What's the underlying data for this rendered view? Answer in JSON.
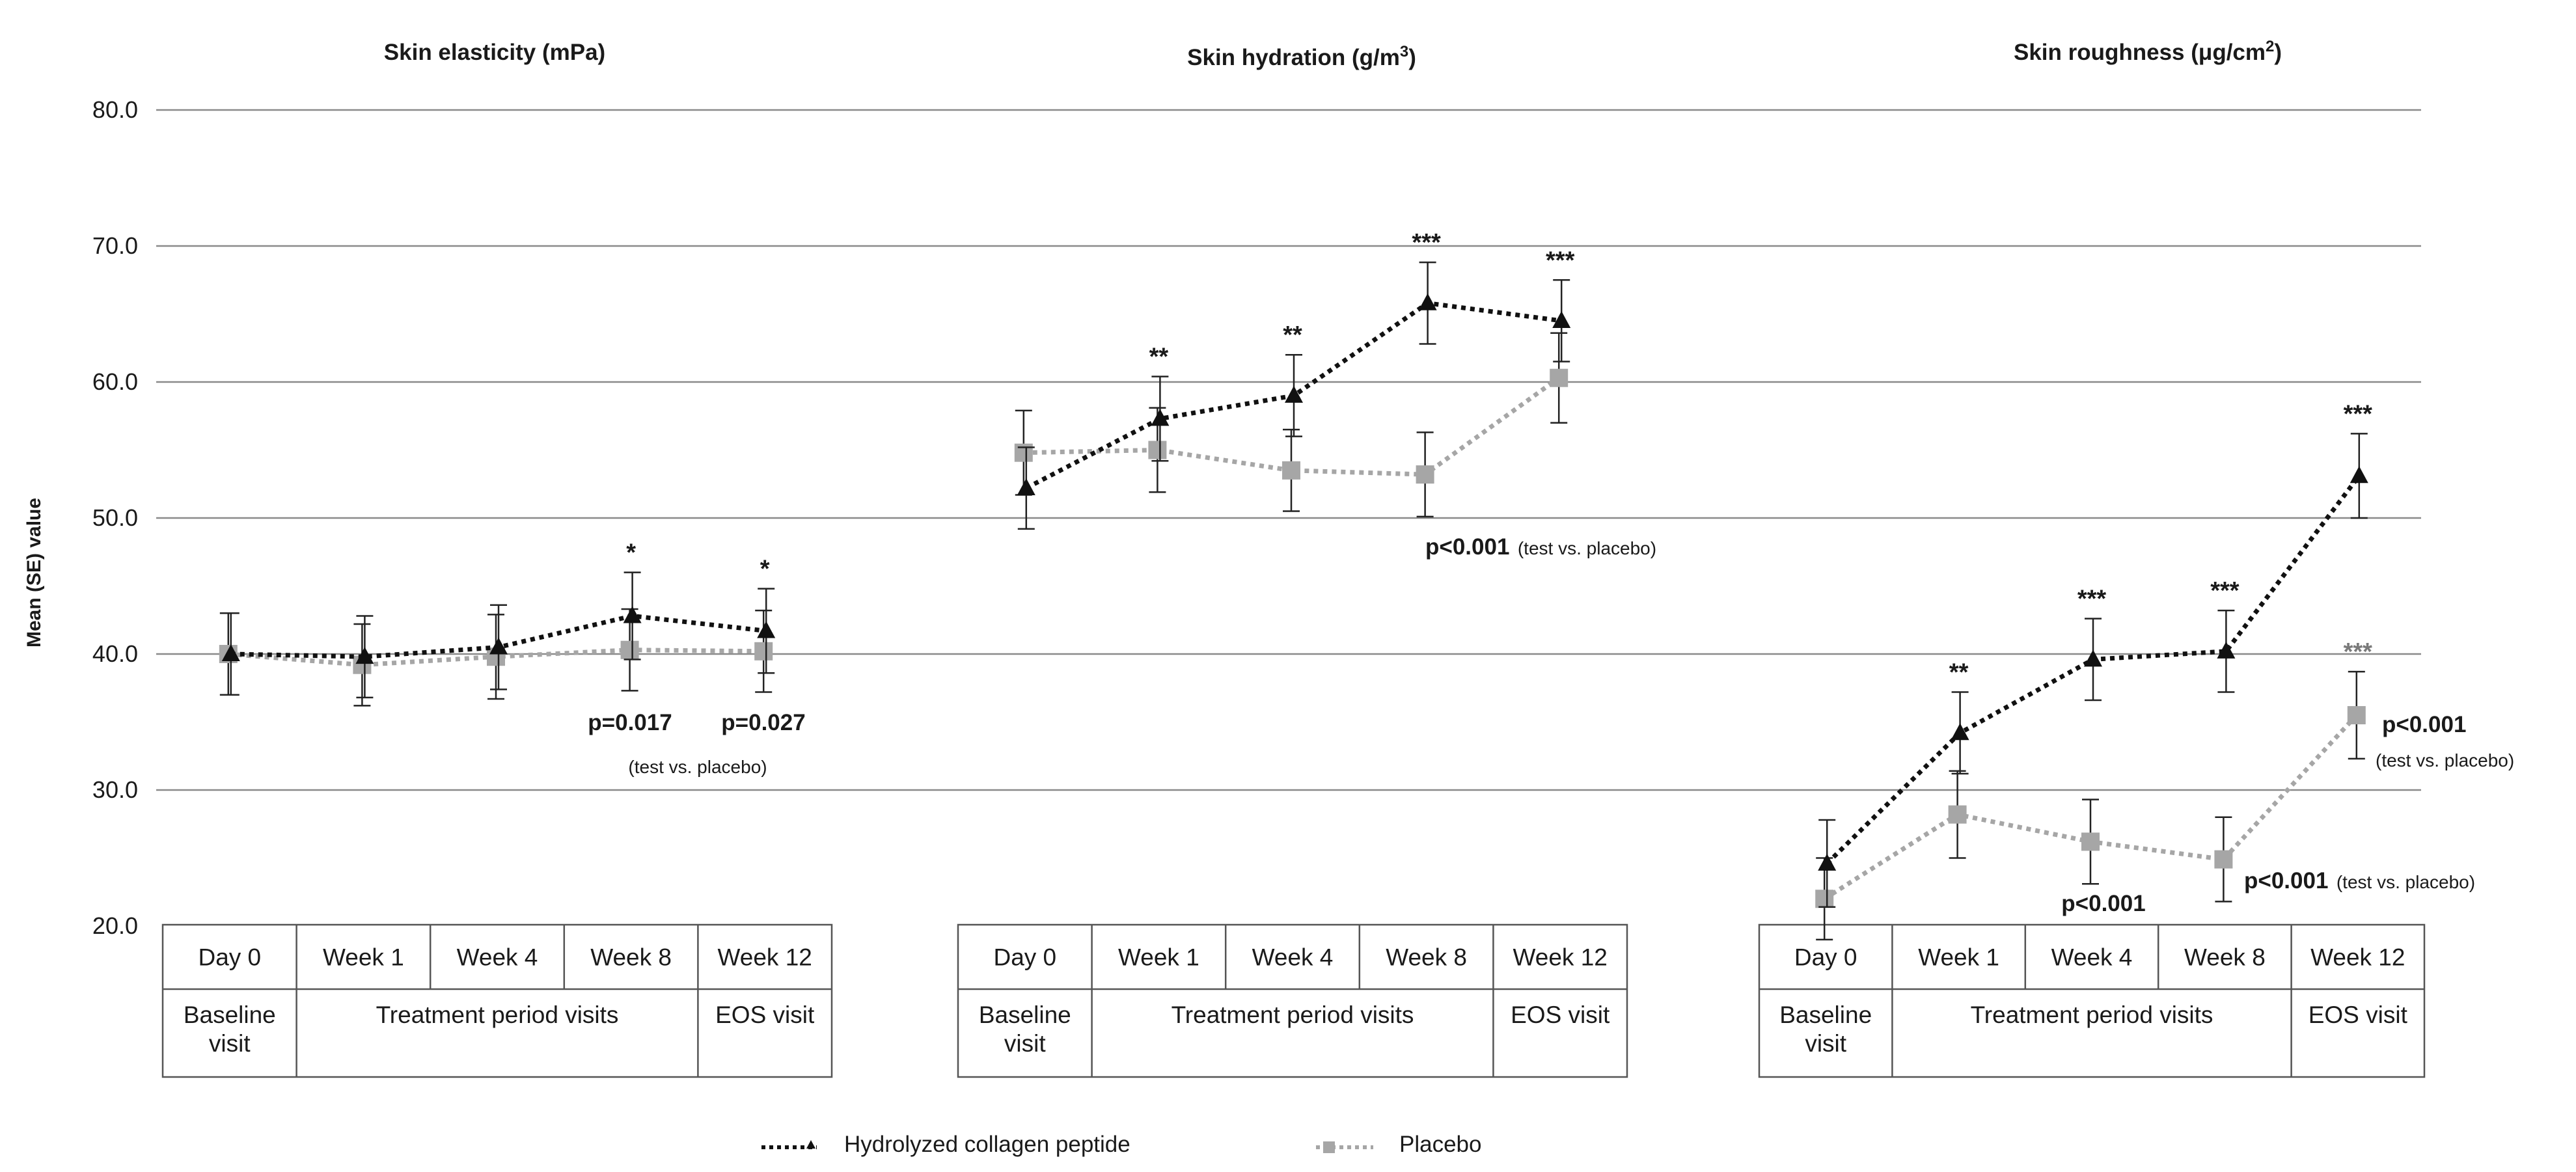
{
  "legend": {
    "hcp": "Hydrolyzed collagen peptide",
    "placebo": "Placebo"
  },
  "colors": {
    "hcp": "#111111",
    "placebo": "#a6a6a6",
    "grid": "#8a8a8a",
    "axis_text": "#1a1a1a"
  },
  "chart_data": {
    "type": "line",
    "ylabel": "Mean (SE) value",
    "ylim": [
      20,
      80
    ],
    "yticks": [
      "80.0",
      "70.0",
      "60.0",
      "50.0",
      "40.0",
      "30.0",
      "20.0"
    ],
    "grid": true,
    "legend_position": "bottom",
    "categories": [
      "Day 0",
      "Week 1",
      "Week 4",
      "Week 8",
      "Week 12"
    ],
    "visit_groups": [
      "Baseline visit",
      "Treatment period visits",
      "EOS visit"
    ],
    "panels": [
      {
        "title": "Skin elasticity (mPa)",
        "series": [
          {
            "name": "Hydrolyzed collagen peptide",
            "values": [
              40.0,
              39.8,
              40.5,
              42.8,
              41.7
            ],
            "errors": [
              3.0,
              3.0,
              3.1,
              3.2,
              3.1
            ]
          },
          {
            "name": "Placebo",
            "values": [
              40.0,
              39.2,
              39.8,
              40.3,
              40.2
            ],
            "errors": [
              3.0,
              3.0,
              3.1,
              3.0,
              3.0
            ]
          }
        ],
        "significance": [
          "",
          "",
          "",
          "*",
          "*"
        ],
        "annotations": [
          {
            "bold": "p=0.017",
            "note": ""
          },
          {
            "bold": "p=0.027",
            "note": ""
          },
          {
            "bold": "",
            "note": "(test vs. placebo)"
          }
        ]
      },
      {
        "title": "Skin hydration (g/m3)",
        "series": [
          {
            "name": "Hydrolyzed collagen peptide",
            "values": [
              52.2,
              57.3,
              59.0,
              65.8,
              64.5
            ],
            "errors": [
              3.0,
              3.1,
              3.0,
              3.0,
              3.0
            ]
          },
          {
            "name": "Placebo",
            "values": [
              54.8,
              55.0,
              53.5,
              53.2,
              60.3
            ],
            "errors": [
              3.1,
              3.1,
              3.0,
              3.1,
              3.3
            ]
          }
        ],
        "significance": [
          "",
          "**",
          "**",
          "***",
          "***"
        ],
        "annotations": [
          {
            "bold": "p<0.001",
            "note": "(test vs. placebo)"
          }
        ]
      },
      {
        "title": "Skin roughness (μg/cm2)",
        "series": [
          {
            "name": "Hydrolyzed collagen peptide",
            "values": [
              24.6,
              34.2,
              39.6,
              40.2,
              53.1
            ],
            "errors": [
              3.2,
              3.0,
              3.0,
              3.0,
              3.1
            ]
          },
          {
            "name": "Placebo",
            "values": [
              22.0,
              28.2,
              26.2,
              24.9,
              35.5
            ],
            "errors": [
              3.0,
              3.2,
              3.1,
              3.1,
              3.2
            ]
          }
        ],
        "significance": [
          "",
          "**",
          "***",
          "***",
          "***"
        ],
        "placebo_significance": [
          "",
          "",
          "",
          "",
          "***"
        ],
        "annotations": [
          {
            "bold": "p<0.001",
            "note": ""
          },
          {
            "bold": "p<0.001",
            "note": "(test vs. placebo)"
          },
          {
            "bold": "p<0.001",
            "note": "(test vs. placebo)"
          }
        ]
      }
    ]
  }
}
